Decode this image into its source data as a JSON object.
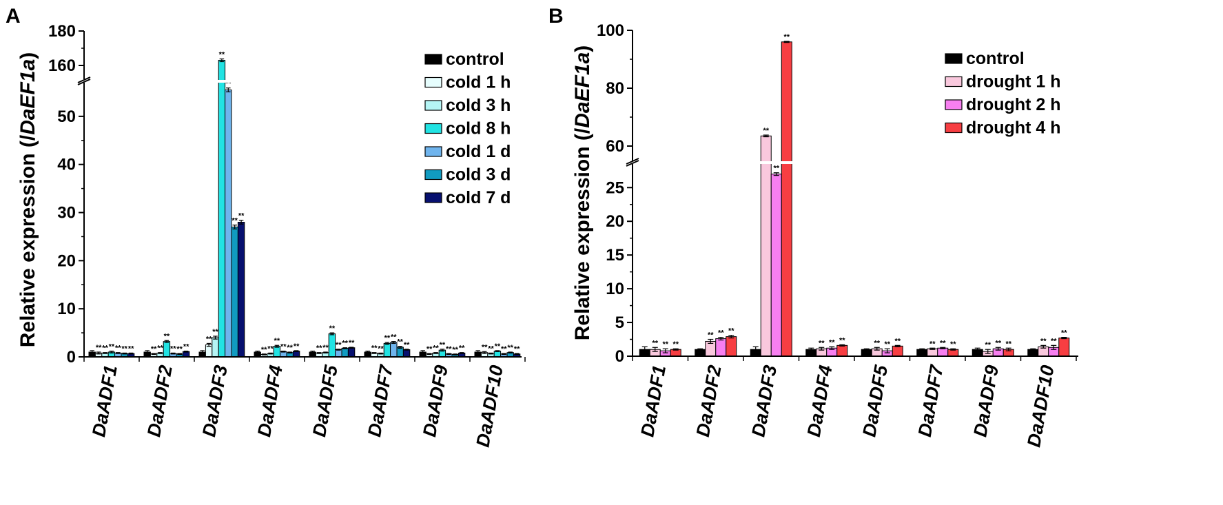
{
  "chart_data": [
    {
      "panel": "A",
      "type": "bar",
      "xlabel": "",
      "ylabel": "Relative expression (/DaEF1a)",
      "ylabel_parts": [
        "Relative expression (/",
        "DaEF1a",
        ")"
      ],
      "ylim": [
        0,
        180
      ],
      "axis_break": [
        57,
        152
      ],
      "yticks": [
        0,
        10,
        20,
        30,
        40,
        50,
        160,
        180
      ],
      "categories": [
        "DaADF1",
        "DaADF2",
        "DaADF3",
        "DaADF4",
        "DaADF5",
        "DaADF7",
        "DaADF9",
        "DaADF10"
      ],
      "legend_position": "top-right",
      "series": [
        {
          "name": "control",
          "color": "#000000",
          "values": [
            1.0,
            1.0,
            1.0,
            1.0,
            1.0,
            1.0,
            1.0,
            1.0
          ],
          "errors": [
            0.3,
            0.3,
            0.3,
            0.2,
            0.2,
            0.2,
            0.3,
            0.3
          ],
          "sig": [
            "",
            "",
            "",
            "",
            "",
            "",
            "",
            ""
          ]
        },
        {
          "name": "cold 1 h",
          "color": "#e6fdfd",
          "values": [
            0.8,
            0.6,
            2.5,
            0.5,
            0.8,
            0.8,
            0.6,
            0.9
          ],
          "errors": [
            0.2,
            0.1,
            0.3,
            0.1,
            0.1,
            0.1,
            0.1,
            0.2
          ],
          "sig": [
            "**",
            "**",
            "**",
            "**",
            "**",
            "**",
            "**",
            "**"
          ]
        },
        {
          "name": "cold 3 h",
          "color": "#b5f5f5",
          "values": [
            0.8,
            0.8,
            4.0,
            0.7,
            0.9,
            0.7,
            0.8,
            0.7
          ],
          "errors": [
            0.1,
            0.1,
            0.3,
            0.1,
            0.1,
            0.1,
            0.1,
            0.1
          ],
          "sig": [
            "**",
            "**",
            "**",
            "**",
            "**",
            "**",
            "**",
            "**"
          ]
        },
        {
          "name": "cold 8 h",
          "color": "#22e3e3",
          "values": [
            1.0,
            3.2,
            163.0,
            2.2,
            4.8,
            2.8,
            1.4,
            1.2
          ],
          "errors": [
            0.2,
            0.2,
            0.8,
            0.2,
            0.2,
            0.2,
            0.2,
            0.1
          ],
          "sig": [
            "**",
            "**",
            "**",
            "**",
            "**",
            "**",
            "**",
            "**"
          ]
        },
        {
          "name": "cold 1 d",
          "color": "#6fb4ed",
          "values": [
            0.8,
            0.7,
            55.5,
            1.1,
            1.5,
            3.0,
            0.6,
            0.6
          ],
          "errors": [
            0.1,
            0.1,
            0.4,
            0.1,
            0.1,
            0.2,
            0.1,
            0.1
          ],
          "sig": [
            "**",
            "**",
            "**",
            "**",
            "**",
            "**",
            "**",
            "**"
          ]
        },
        {
          "name": "cold 3 d",
          "color": "#119bc1",
          "values": [
            0.7,
            0.6,
            27.0,
            0.9,
            1.8,
            2.0,
            0.5,
            0.9
          ],
          "errors": [
            0.1,
            0.1,
            0.4,
            0.1,
            0.1,
            0.2,
            0.1,
            0.1
          ],
          "sig": [
            "**",
            "**",
            "**",
            "**",
            "**",
            "**",
            "**",
            "**"
          ]
        },
        {
          "name": "cold 7 d",
          "color": "#07106f",
          "values": [
            0.7,
            1.1,
            28.0,
            1.2,
            1.9,
            1.5,
            0.8,
            0.6
          ],
          "errors": [
            0.1,
            0.1,
            0.4,
            0.1,
            0.1,
            0.1,
            0.1,
            0.1
          ],
          "sig": [
            "**",
            "**",
            "**",
            "**",
            "**",
            "**",
            "**",
            "**"
          ]
        }
      ]
    },
    {
      "panel": "B",
      "type": "bar",
      "xlabel": "",
      "ylabel": "Relative expression (/DaEF1a)",
      "ylabel_parts": [
        "Relative expression (/",
        "DaEF1a",
        ")"
      ],
      "ylim": [
        0,
        100
      ],
      "axis_break": [
        28.5,
        55
      ],
      "yticks": [
        0,
        5,
        10,
        15,
        20,
        25,
        60,
        80,
        100
      ],
      "categories": [
        "DaADF1",
        "DaADF2",
        "DaADF3",
        "DaADF4",
        "DaADF5",
        "DaADF7",
        "DaADF9",
        "DaADF10"
      ],
      "legend_position": "top-right",
      "series": [
        {
          "name": "control",
          "color": "#000000",
          "values": [
            1.0,
            1.0,
            1.0,
            1.0,
            1.0,
            1.0,
            1.0,
            1.0
          ],
          "errors": [
            0.4,
            0.1,
            0.4,
            0.2,
            0.1,
            0.1,
            0.2,
            0.1
          ],
          "sig": [
            "",
            "",
            "",
            "",
            "",
            "",
            "",
            ""
          ]
        },
        {
          "name": "drought 1 h",
          "color": "#f9c8dd",
          "values": [
            1.0,
            2.2,
            63.5,
            1.1,
            1.1,
            1.1,
            0.7,
            1.4
          ],
          "errors": [
            0.3,
            0.3,
            0.3,
            0.2,
            0.2,
            0.1,
            0.3,
            0.2
          ],
          "sig": [
            "**",
            "**",
            "**",
            "**",
            "**",
            "**",
            "**",
            "**"
          ]
        },
        {
          "name": "drought 2 h",
          "color": "#f77ff0",
          "values": [
            0.8,
            2.6,
            27.0,
            1.2,
            0.8,
            1.2,
            1.1,
            1.3
          ],
          "errors": [
            0.3,
            0.2,
            0.2,
            0.2,
            0.3,
            0.1,
            0.2,
            0.3
          ],
          "sig": [
            "**",
            "**",
            "**",
            "**",
            "**",
            "**",
            "**",
            "**"
          ]
        },
        {
          "name": "drought 4 h",
          "color": "#f73e42",
          "values": [
            1.0,
            2.9,
            96.0,
            1.6,
            1.5,
            1.0,
            1.0,
            2.7
          ],
          "errors": [
            0.1,
            0.2,
            0.2,
            0.1,
            0.1,
            0.1,
            0.2,
            0.1
          ],
          "sig": [
            "**",
            "**",
            "**",
            "**",
            "**",
            "**",
            "**",
            "**"
          ]
        }
      ]
    }
  ]
}
